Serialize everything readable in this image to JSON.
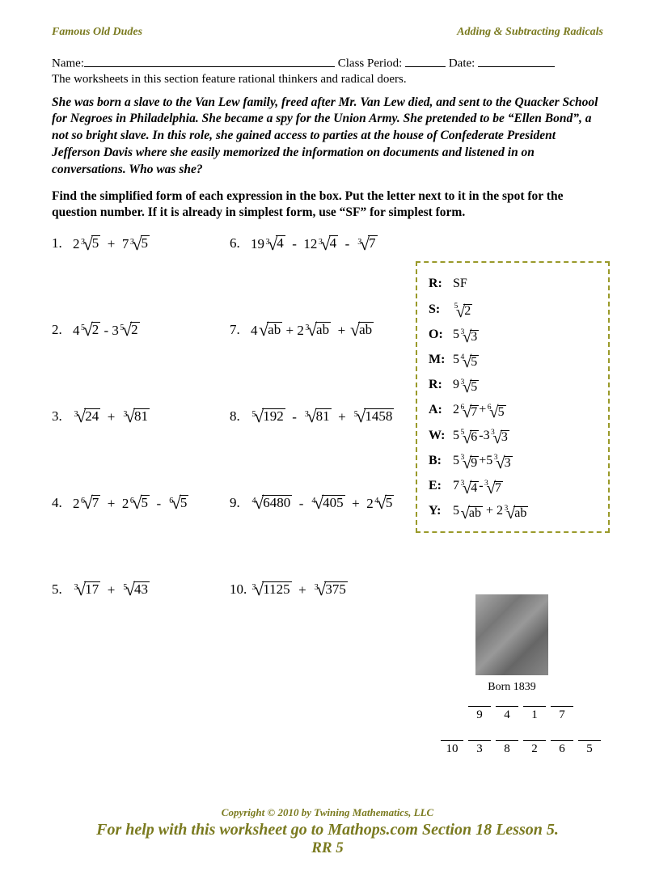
{
  "header": {
    "left": "Famous Old Dudes",
    "right": "Adding & Subtracting Radicals"
  },
  "nameline": {
    "name_label": "Name:",
    "period_label": " Class Period: ",
    "date_label": "  Date:  "
  },
  "subhead": "The worksheets in this section feature rational thinkers and radical doers.",
  "story": "She was born a slave to the Van Lew family, freed after Mr. Van Lew died, and sent to the Quacker School for Negroes in Philadelphia.   She became a spy for the Union Army.  She pretended to be “Ellen Bond”, a not so bright slave.  In this role, she gained access to parties at the house of Confederate President Jefferson Davis where she easily memorized the information on documents and listened in on conversations.  Who was she?",
  "instructions": "Find the simplified form of each expression in the box.  Put the letter next to it in the spot for the question number.  If it is already in simplest form, use “SF” for simplest form.",
  "problems": [
    {
      "n": "1.",
      "col": 1,
      "terms": [
        {
          "c": "2",
          "i": "3",
          "r": "5"
        },
        {
          "op": "  +  "
        },
        {
          "c": "7",
          "i": "3",
          "r": "5"
        }
      ]
    },
    {
      "n": "6.",
      "col": 2,
      "terms": [
        {
          "c": "19",
          "i": "3",
          "r": "4"
        },
        {
          "op": "  -  "
        },
        {
          "c": "12",
          "i": "3",
          "r": "4"
        },
        {
          "op": "  -  "
        },
        {
          "c": "",
          "i": "3",
          "r": "7"
        }
      ]
    },
    {
      "n": "2.",
      "col": 1,
      "terms": [
        {
          "c": "4",
          "i": "5",
          "r": "2"
        },
        {
          "op": " - "
        },
        {
          "c": "3",
          "i": "5",
          "r": "2"
        }
      ]
    },
    {
      "n": "7.",
      "col": 2,
      "terms": [
        {
          "c": "4",
          "i": "",
          "r": "ab"
        },
        {
          "op": " + "
        },
        {
          "c": "2",
          "i": "3",
          "r": "ab"
        },
        {
          "op": "  + "
        },
        {
          "c": "",
          "i": "",
          "r": "ab"
        }
      ]
    },
    {
      "n": "3.",
      "col": 1,
      "terms": [
        {
          "c": "",
          "i": "3",
          "r": "24"
        },
        {
          "op": "  +  "
        },
        {
          "c": "",
          "i": "3",
          "r": "81"
        }
      ]
    },
    {
      "n": "8.",
      "col": 2,
      "terms": [
        {
          "c": "",
          "i": "5",
          "r": "192"
        },
        {
          "op": "  -  "
        },
        {
          "c": "",
          "i": "3",
          "r": "81"
        },
        {
          "op": "  +  "
        },
        {
          "c": "",
          "i": "5",
          "r": "1458"
        }
      ]
    },
    {
      "n": "4.",
      "col": 1,
      "terms": [
        {
          "c": "2",
          "i": "6",
          "r": "7"
        },
        {
          "op": "  +  "
        },
        {
          "c": "2",
          "i": "6",
          "r": "5"
        },
        {
          "op": "  -  "
        },
        {
          "c": "",
          "i": "6",
          "r": "5"
        }
      ]
    },
    {
      "n": "9.",
      "col": 2,
      "terms": [
        {
          "c": "",
          "i": "4",
          "r": "6480"
        },
        {
          "op": "  -  "
        },
        {
          "c": "",
          "i": "4",
          "r": "405"
        },
        {
          "op": "  +  "
        },
        {
          "c": "2",
          "i": "4",
          "r": "5"
        }
      ]
    },
    {
      "n": "5.",
      "col": 1,
      "terms": [
        {
          "c": "",
          "i": "3",
          "r": "17"
        },
        {
          "op": "  +  "
        },
        {
          "c": "",
          "i": "5",
          "r": "43"
        }
      ]
    },
    {
      "n": "10.",
      "col": 2,
      "terms": [
        {
          "c": "",
          "i": "3",
          "r": "1125"
        },
        {
          "op": "  +  "
        },
        {
          "c": "",
          "i": "3",
          "r": "375"
        }
      ]
    }
  ],
  "answers": [
    {
      "k": "R:",
      "terms": [
        {
          "txt": "SF"
        }
      ]
    },
    {
      "k": "S:",
      "terms": [
        {
          "c": "",
          "i": "5",
          "r": "2"
        }
      ]
    },
    {
      "k": "O:",
      "terms": [
        {
          "c": "5",
          "i": "3",
          "r": "3"
        }
      ]
    },
    {
      "k": "M:",
      "terms": [
        {
          "c": "5",
          "i": "4",
          "r": "5"
        }
      ]
    },
    {
      "k": "R:",
      "terms": [
        {
          "c": "9",
          "i": "3",
          "r": "5"
        }
      ]
    },
    {
      "k": "A:",
      "terms": [
        {
          "c": "2",
          "i": "6",
          "r": "7"
        },
        {
          "op": "+"
        },
        {
          "c": "",
          "i": "6",
          "r": "5"
        }
      ]
    },
    {
      "k": "W:",
      "terms": [
        {
          "c": "5",
          "i": "5",
          "r": "6"
        },
        {
          "op": "-"
        },
        {
          "c": "3",
          "i": "3",
          "r": "3"
        }
      ]
    },
    {
      "k": "B:",
      "terms": [
        {
          "c": "5",
          "i": "3",
          "r": "9"
        },
        {
          "op": "+"
        },
        {
          "c": "5",
          "i": "3",
          "r": "3"
        }
      ]
    },
    {
      "k": "E:",
      "terms": [
        {
          "c": "7",
          "i": "3",
          "r": "4"
        },
        {
          "op": "-"
        },
        {
          "c": "",
          "i": "3",
          "r": "7"
        }
      ]
    },
    {
      "k": "Y:",
      "terms": [
        {
          "c": "5",
          "i": "",
          "r": "ab"
        },
        {
          "op": " + "
        },
        {
          "c": "2",
          "i": "3",
          "r": "ab"
        }
      ]
    }
  ],
  "photo_caption": "Born 1839",
  "blanks": {
    "row1": [
      "9",
      "4",
      "1",
      "7"
    ],
    "row2": [
      "10",
      "3",
      "8",
      "2",
      "6",
      "5"
    ]
  },
  "footer": {
    "copyright": "Copyright © 2010 by Twining Mathematics, LLC",
    "help": "For help with this worksheet go to Mathops.com Section 18 Lesson 5.",
    "code": "RR 5"
  }
}
